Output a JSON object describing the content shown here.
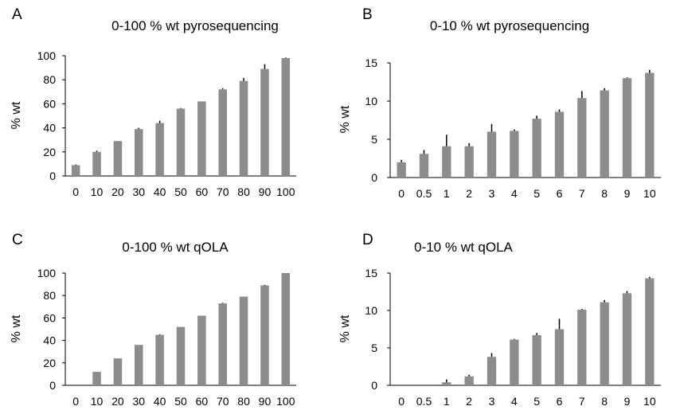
{
  "colors": {
    "bar": "#8c8c8c",
    "axis": "#000000",
    "error": "#000000"
  },
  "chart_data": [
    {
      "type": "bar",
      "panel_letter": "A",
      "title": "0-100 % wt pyrosequencing",
      "xlabel": "",
      "ylabel": "% wt",
      "ylim": [
        0,
        100
      ],
      "yticks": [
        0,
        20,
        40,
        60,
        80,
        100
      ],
      "grid": false,
      "categories": [
        "0",
        "10",
        "20",
        "30",
        "40",
        "50",
        "60",
        "70",
        "80",
        "90",
        "100"
      ],
      "values": [
        9,
        20,
        29,
        39,
        44,
        56,
        62,
        72,
        79,
        89,
        98
      ],
      "errors": [
        0.5,
        1,
        0,
        1,
        2,
        0.5,
        0,
        1,
        2.5,
        4,
        0.5
      ]
    },
    {
      "type": "bar",
      "panel_letter": "B",
      "title": "0-10 % wt pyrosequencing",
      "xlabel": "",
      "ylabel": "% wt",
      "ylim": [
        0,
        15
      ],
      "yticks": [
        0,
        5,
        10,
        15
      ],
      "grid": false,
      "categories": [
        "0",
        "0.5",
        "1",
        "2",
        "3",
        "4",
        "5",
        "6",
        "7",
        "8",
        "9",
        "10"
      ],
      "values": [
        2.0,
        3.1,
        4.1,
        4.1,
        6.0,
        6.1,
        7.7,
        8.6,
        10.4,
        11.4,
        13.0,
        13.7
      ],
      "errors": [
        0.3,
        0.5,
        1.5,
        0.4,
        1.0,
        0.2,
        0.4,
        0.3,
        0.9,
        0.3,
        0.1,
        0.4
      ]
    },
    {
      "type": "bar",
      "panel_letter": "C",
      "title": "0-100 % wt qOLA",
      "xlabel": "",
      "ylabel": "% wt",
      "ylim": [
        0,
        100
      ],
      "yticks": [
        0,
        20,
        40,
        60,
        80,
        100
      ],
      "grid": false,
      "categories": [
        "0",
        "10",
        "20",
        "30",
        "40",
        "50",
        "60",
        "70",
        "80",
        "90",
        "100"
      ],
      "values": [
        0,
        12,
        24,
        36,
        45,
        52,
        62,
        73,
        79,
        89,
        100
      ],
      "errors": [
        0,
        0,
        0,
        0,
        0.5,
        0,
        0,
        0.5,
        0,
        0.5,
        0
      ]
    },
    {
      "type": "bar",
      "panel_letter": "D",
      "title": "0-10 % wt qOLA",
      "xlabel": "",
      "ylabel": "% wt",
      "ylim": [
        0,
        15
      ],
      "yticks": [
        0,
        5,
        10,
        15
      ],
      "grid": false,
      "categories": [
        "0",
        "0.5",
        "1",
        "2",
        "3",
        "4",
        "5",
        "6",
        "7",
        "8",
        "9",
        "10"
      ],
      "values": [
        0,
        0,
        0.4,
        1.2,
        3.8,
        6.1,
        6.7,
        7.5,
        10.1,
        11.1,
        12.3,
        14.3
      ],
      "errors": [
        0,
        0,
        0.4,
        0.2,
        0.5,
        0.1,
        0.3,
        1.4,
        0.1,
        0.3,
        0.3,
        0.2
      ]
    }
  ]
}
